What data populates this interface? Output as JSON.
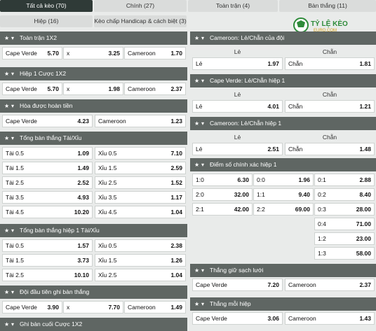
{
  "tabs": [
    "Tất cả kèo (70)",
    "Chính (27)",
    "Toàn trận (4)",
    "Bàn thắng (11)",
    "Hiệp (16)",
    "Kèo chấp Handicap & cách biệt (3)"
  ],
  "logo": {
    "main": "TỶ LỆ KÈO",
    "sub": "EURO.COM"
  },
  "left": [
    {
      "title": "Toàn trận 1X2",
      "rows": [
        [
          "Cape Verde",
          "5.70",
          "x",
          "3.25",
          "Cameroon",
          "1.70"
        ]
      ]
    },
    {
      "title": "Hiệp 1 Cược 1X2",
      "rows": [
        [
          "Cape Verde",
          "5.70",
          "x",
          "1.98",
          "Cameroon",
          "2.37"
        ]
      ]
    },
    {
      "title": "Hòa được hoàn tiền",
      "rows2": [
        [
          "Cape Verde",
          "4.23",
          "Cameroon",
          "1.23"
        ]
      ]
    },
    {
      "title": "Tổng bàn thắng Tài/Xỉu",
      "rows2": [
        [
          "Tài 0.5",
          "1.09",
          "Xỉu 0.5",
          "7.10"
        ],
        [
          "Tài 1.5",
          "1.49",
          "Xỉu 1.5",
          "2.59"
        ],
        [
          "Tài 2.5",
          "2.52",
          "Xỉu 2.5",
          "1.52"
        ],
        [
          "Tài 3.5",
          "4.93",
          "Xỉu 3.5",
          "1.17"
        ],
        [
          "Tài 4.5",
          "10.20",
          "Xỉu 4.5",
          "1.04"
        ]
      ]
    },
    {
      "title": "Tổng bàn thắng hiệp 1 Tài/Xỉu",
      "rows2": [
        [
          "Tài 0.5",
          "1.57",
          "Xỉu 0.5",
          "2.38"
        ],
        [
          "Tài 1.5",
          "3.73",
          "Xỉu 1.5",
          "1.26"
        ],
        [
          "Tài 2.5",
          "10.10",
          "Xỉu 2.5",
          "1.04"
        ]
      ]
    },
    {
      "title": "Đội đầu tiên ghi bàn thắng",
      "rows": [
        [
          "Cape Verde",
          "3.90",
          "x",
          "7.70",
          "Cameroon",
          "1.49"
        ]
      ]
    },
    {
      "title": "Ghi bàn cuối Cược 1X2"
    }
  ],
  "right": [
    {
      "title": "Cameroon: Lẻ/Chẵn của đội",
      "heads": [
        "Lẻ",
        "Chẵn"
      ],
      "rows2": [
        [
          "Lẻ",
          "1.97",
          "Chẵn",
          "1.81"
        ]
      ]
    },
    {
      "title": "Cape Verde: Lẻ/Chẵn hiệp 1",
      "heads": [
        "Lẻ",
        "Chẵn"
      ],
      "rows2": [
        [
          "Lẻ",
          "4.01",
          "Chẵn",
          "1.21"
        ]
      ]
    },
    {
      "title": "Cameroon: Lẻ/Chẵn hiệp 1",
      "heads": [
        "Lẻ",
        "Chẵn"
      ],
      "rows2": [
        [
          "Lẻ",
          "2.51",
          "Chẵn",
          "1.48"
        ]
      ]
    },
    {
      "title": "Điểm số chính xác hiệp 1",
      "rows3": [
        [
          "1:0",
          "6.30",
          "0:0",
          "1.96",
          "0:1",
          "2.88"
        ],
        [
          "2:0",
          "32.00",
          "1:1",
          "9.40",
          "0:2",
          "8.40"
        ],
        [
          "2:1",
          "42.00",
          "2:2",
          "69.00",
          "0:3",
          "28.00"
        ],
        [
          "",
          "",
          "",
          "",
          "0:4",
          "71.00"
        ],
        [
          "",
          "",
          "",
          "",
          "1:2",
          "23.00"
        ],
        [
          "",
          "",
          "",
          "",
          "1:3",
          "58.00"
        ]
      ]
    },
    {
      "title": "Thắng giữ sạch lưới",
      "rows2": [
        [
          "Cape Verde",
          "7.20",
          "Cameroon",
          "2.37"
        ]
      ]
    },
    {
      "title": "Thắng mỗi hiệp",
      "rows2": [
        [
          "Cape Verde",
          "3.06",
          "Cameroon",
          "1.43"
        ]
      ]
    }
  ]
}
